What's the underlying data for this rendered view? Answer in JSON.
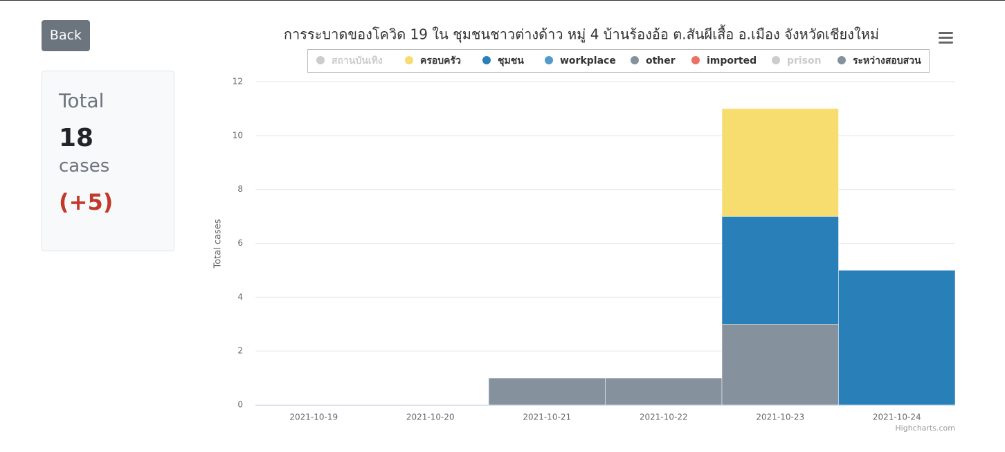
{
  "back_button": "Back",
  "summary": {
    "label": "Total",
    "total": 18,
    "unit": "cases",
    "change": "(+5)"
  },
  "chart_data": {
    "type": "stacked-column",
    "title": "การระบาดของโควิด 19 ใน ชุมชนชาวต่างด้าว หมู่ 4 บ้านร้องอ้อ ต.สันผีเสื้อ อ.เมือง จังหวัดเชียงใหม่",
    "y_label": "Total cases",
    "credit": "Highcharts.com",
    "categories": [
      "2021-10-19",
      "2021-10-20",
      "2021-10-21",
      "2021-10-22",
      "2021-10-23",
      "2021-10-24"
    ],
    "ylim": [
      0,
      12
    ],
    "yticks": [
      0,
      2,
      4,
      6,
      8,
      10,
      12
    ],
    "grid": true,
    "series": [
      {
        "name": "สถานบันเทิง",
        "visible": false,
        "values": [
          null,
          null,
          null,
          null,
          null,
          null
        ]
      },
      {
        "name": "ครอบครัว",
        "color": "#f7dc6f",
        "values": [
          0,
          0,
          0,
          0,
          4,
          0
        ]
      },
      {
        "name": "ชุมชน",
        "color": "#2980b9",
        "values": [
          0,
          0,
          0,
          0,
          4,
          5
        ]
      },
      {
        "name": "workplace",
        "color": "#5499c7",
        "values": [
          0,
          0,
          0,
          0,
          0,
          0
        ]
      },
      {
        "name": "other",
        "color": "#85929e",
        "values": [
          0,
          0,
          0,
          0,
          0,
          0
        ]
      },
      {
        "name": "imported",
        "color": "#ec7063",
        "values": [
          0,
          0,
          0,
          0,
          0,
          0
        ]
      },
      {
        "name": "prison",
        "visible": false,
        "values": [
          null,
          null,
          null,
          null,
          null,
          null
        ]
      },
      {
        "name": "ระหว่างสอบสวน",
        "color": "#85929e",
        "values": [
          0,
          0,
          1,
          1,
          3,
          0
        ]
      }
    ]
  }
}
